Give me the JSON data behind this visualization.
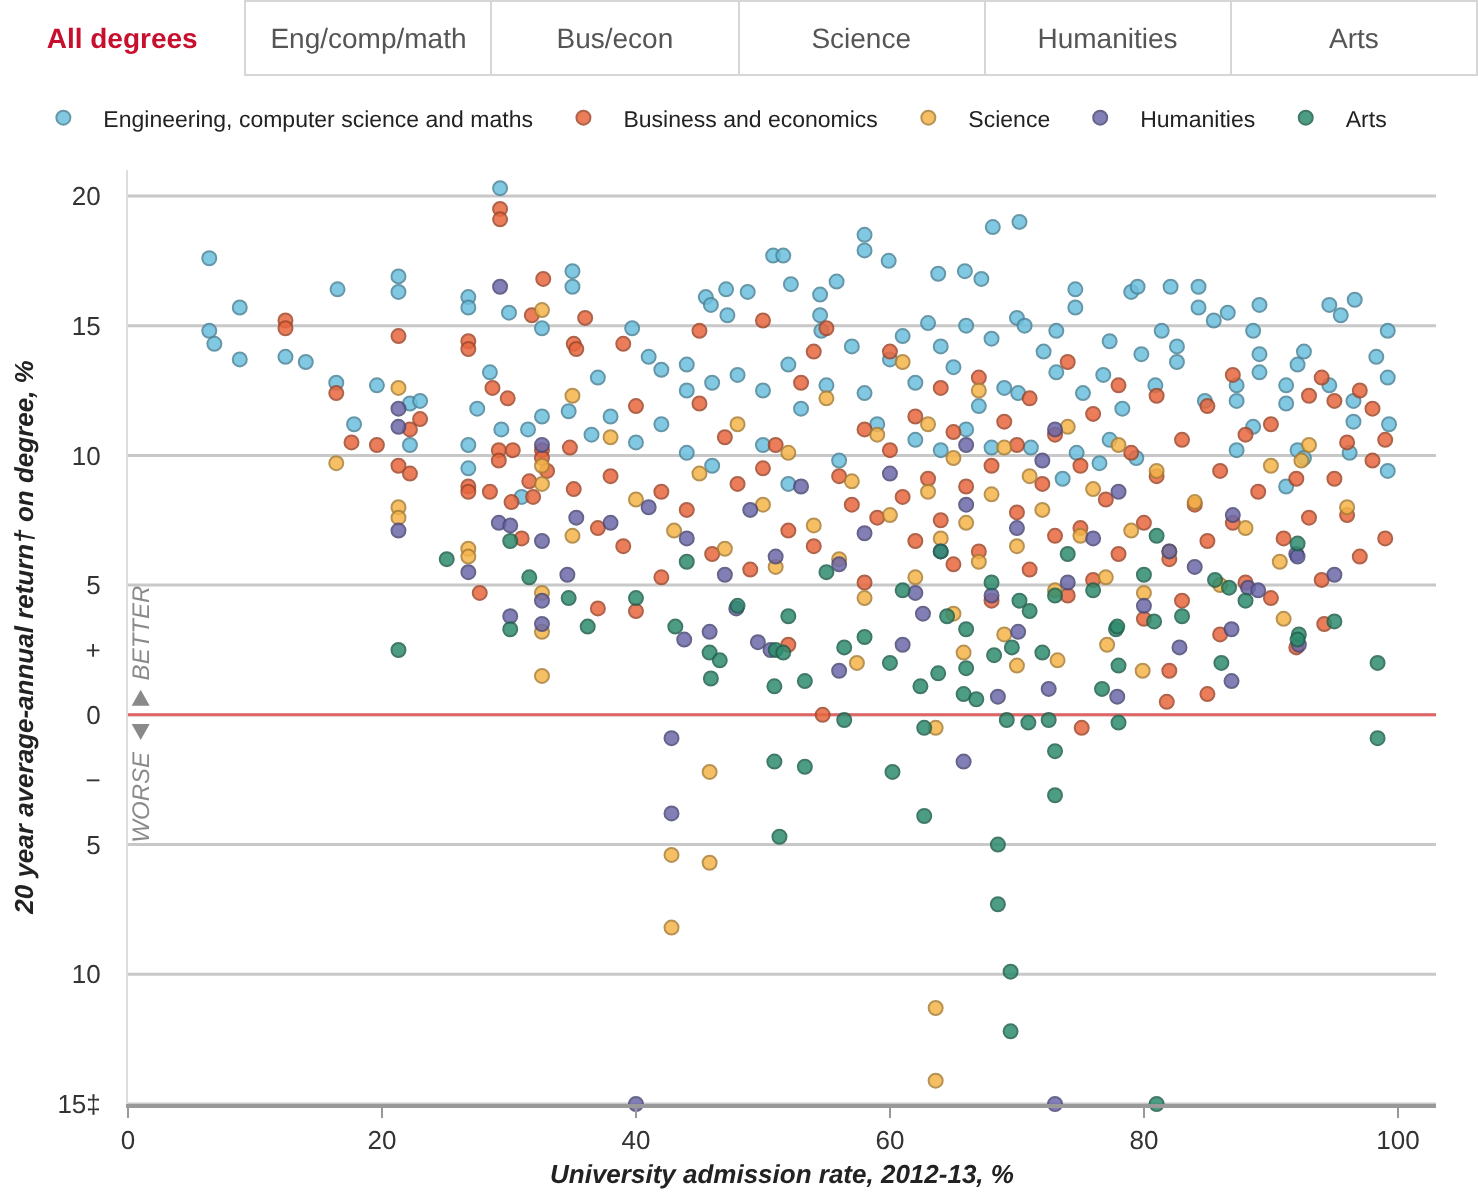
{
  "chart_data": {
    "type": "scatter",
    "xlabel": "University admission rate, 2012-13, %",
    "ylabel": "20 year average-annual return† on degree, %",
    "annotations": [
      "All degrees",
      "Eng/comp/math",
      "Bus/econ",
      "Science",
      "Humanities",
      "Arts",
      "BETTER",
      "WORSE"
    ],
    "xlim": [
      0,
      103
    ],
    "xticks": [
      0,
      20,
      40,
      60,
      80,
      100
    ],
    "ylim": [
      -15,
      21
    ],
    "yticks": [
      20,
      15,
      10,
      5,
      {
        "value": 2.5,
        "label": "+"
      },
      0,
      {
        "value": -2.5,
        "label": "−"
      },
      {
        "value": -5,
        "label": "5"
      },
      {
        "value": -10,
        "label": "10"
      },
      {
        "value": -15,
        "label": "15‡"
      }
    ],
    "grid": "y",
    "legend": "top left",
    "marker": "circle",
    "ref_lines": [
      {
        "axis": "y",
        "value": 0,
        "color": "#e06666"
      }
    ],
    "series": [
      {
        "name": "Engineering, computer science and maths",
        "color": "#6cc0de",
        "x": [
          6.4,
          6.4,
          6.8,
          8.8,
          8.8,
          12.4,
          14,
          16.5,
          16.4,
          19.6,
          17.8,
          21.3,
          21.3,
          22.2,
          23,
          22.2,
          26.8,
          26.8,
          28.5,
          29.3,
          30,
          32.6,
          35,
          35,
          27.5,
          26.8,
          26.8,
          31,
          29.4,
          31.5,
          32.6,
          34.7,
          58,
          58,
          59.9,
          50.8,
          51.6,
          68.1,
          70.2,
          63.8,
          65.9,
          67.2,
          52.2,
          55.8,
          54.5,
          54.5,
          54.6,
          47.1,
          48.8,
          45.5,
          45.9,
          47.2,
          39.7,
          41,
          42,
          44,
          37,
          38,
          36.5,
          40,
          42,
          44,
          46,
          48,
          50,
          52,
          53,
          55,
          57,
          58,
          59,
          60,
          61,
          62,
          63,
          64,
          65,
          66,
          67,
          68,
          69,
          70,
          62,
          64,
          66,
          68,
          56,
          50,
          46,
          44,
          52,
          74.6,
          74.6,
          79,
          79.5,
          82.1,
          84.3,
          84.3,
          89.1,
          94.6,
          95.5,
          96.6,
          99.2,
          99.2,
          99.3,
          99.2,
          98.3,
          96.5,
          96.5,
          96.2,
          94.6,
          92.1,
          92.6,
          92.1,
          92.6,
          91.2,
          91.2,
          91.2,
          89.1,
          89.1,
          88.6,
          88.6,
          87.3,
          87.3,
          87.3,
          85.5,
          86.6,
          84.8,
          82.6,
          82.6,
          81.4,
          80.9,
          79.8,
          78.3,
          77.3,
          77.3,
          76.8,
          76.5,
          75.2,
          74.7,
          73.1,
          73.1,
          72.1,
          70.6,
          70.1,
          71.1,
          73.6,
          79.4
        ],
        "values": [
          17.6,
          14.8,
          14.3,
          15.7,
          13.7,
          13.8,
          13.6,
          16.4,
          12.8,
          12.7,
          11.2,
          16.9,
          16.3,
          12,
          12.1,
          10.4,
          16.1,
          15.7,
          13.2,
          20.3,
          15.5,
          14.9,
          17.1,
          16.5,
          11.8,
          10.4,
          9.5,
          8.4,
          11,
          11,
          11.5,
          11.7,
          18.5,
          17.9,
          17.5,
          17.7,
          17.7,
          18.8,
          19,
          17,
          17.1,
          16.8,
          16.6,
          16.7,
          16.2,
          15.4,
          14.8,
          16.4,
          16.3,
          16.1,
          15.8,
          15.4,
          14.9,
          13.8,
          13.3,
          13.5,
          13,
          11.5,
          10.8,
          10.5,
          11.2,
          12.5,
          12.8,
          13.1,
          12.5,
          13.5,
          11.8,
          12.7,
          14.2,
          12.4,
          11.2,
          13.7,
          14.6,
          12.8,
          15.1,
          14.2,
          13.4,
          15,
          11.9,
          14.5,
          12.6,
          15.3,
          10.6,
          10.2,
          11,
          10.3,
          9.8,
          10.4,
          9.6,
          10.1,
          8.9,
          16.4,
          15.7,
          16.3,
          16.5,
          16.5,
          16.5,
          15.7,
          15.8,
          15.8,
          15.4,
          16,
          14.8,
          13,
          11.2,
          9.4,
          13.8,
          12.1,
          11.3,
          10.1,
          12.7,
          13.5,
          14,
          10.2,
          9.9,
          12.7,
          12,
          8.8,
          13.9,
          13.2,
          14.8,
          11.1,
          12.7,
          12.1,
          10.2,
          15.2,
          15.5,
          12.1,
          14.2,
          13.6,
          14.8,
          12.7,
          13.9,
          11.8,
          14.4,
          10.6,
          13.1,
          9.7,
          12.4,
          10.1,
          14.8,
          13.2,
          14,
          15,
          12.4,
          10.3,
          9.1,
          9.9
        ]
      },
      {
        "name": "Business and economics",
        "color": "#e8673e",
        "x": [
          29.3,
          29.3,
          32.7,
          31.8,
          12.4,
          12.4,
          21.3,
          26.8,
          26.8,
          35.1,
          16.4,
          28.7,
          29.9,
          23,
          22.2,
          17.6,
          19.6,
          21.3,
          22.2,
          29.2,
          29.2,
          30.3,
          26.8,
          26.8,
          31.6,
          30.2,
          31.9,
          28.5,
          31,
          32.6,
          32.6,
          34.8,
          35.1,
          27.7,
          35.3,
          36,
          40,
          38,
          42,
          44,
          45,
          47,
          48,
          46,
          42,
          39,
          37,
          40,
          49,
          50,
          51,
          52,
          53,
          54,
          54,
          56,
          57,
          58,
          58,
          59,
          60,
          60,
          61,
          62,
          62,
          63,
          64,
          64,
          65,
          65,
          66,
          67,
          67,
          68,
          68,
          69,
          70,
          70,
          71,
          71,
          72,
          73,
          73,
          74,
          74,
          75,
          75,
          76,
          76,
          77,
          78,
          78,
          79,
          80,
          80,
          81,
          81,
          82,
          82,
          83,
          83,
          84,
          85,
          85,
          86,
          86,
          87,
          87,
          88,
          88,
          89,
          90,
          90,
          91,
          92,
          92,
          93,
          93,
          94,
          95,
          95,
          96,
          96,
          97,
          98,
          98,
          99,
          99,
          97,
          94,
          54.7,
          52,
          33,
          37,
          39,
          45,
          50,
          55,
          75.1,
          81.8,
          85,
          94.2
        ],
        "values": [
          19.5,
          19.1,
          16.8,
          15.4,
          15.2,
          14.9,
          14.6,
          14.4,
          14.1,
          14.3,
          12.4,
          12.6,
          12.2,
          11.4,
          11,
          10.5,
          10.4,
          9.6,
          9.3,
          10.2,
          9.8,
          10.2,
          8.8,
          8.6,
          9,
          8.2,
          8.4,
          8.6,
          6.8,
          10.2,
          9.9,
          10.3,
          8.7,
          4.7,
          14.1,
          15.3,
          11.9,
          9.2,
          8.6,
          7.9,
          12,
          10.7,
          8.9,
          6.2,
          5.3,
          6.5,
          4.1,
          4,
          5.6,
          9.5,
          10.4,
          7.1,
          12.8,
          14,
          6.5,
          9.2,
          8.1,
          11,
          5.1,
          7.6,
          10.2,
          14,
          8.4,
          6.7,
          11.5,
          9.1,
          7.5,
          12.6,
          5.8,
          10.9,
          8.8,
          13,
          6.3,
          9.6,
          4.4,
          11.3,
          7.8,
          10.4,
          12.2,
          5.6,
          8.9,
          6.9,
          10.8,
          13.6,
          4.6,
          9.6,
          7.2,
          11.6,
          5.2,
          8.3,
          12.7,
          6.2,
          10.1,
          7.4,
          3.7,
          9.2,
          12.3,
          6,
          1.7,
          10.6,
          4.4,
          8.1,
          11.9,
          6.7,
          9.4,
          3.1,
          13.1,
          7.4,
          10.8,
          5.1,
          8.6,
          11.2,
          4.5,
          6.8,
          9.1,
          2.6,
          12.3,
          7.6,
          5.2,
          9.1,
          12.1,
          7.7,
          10.5,
          6.1,
          9.8,
          11.8,
          6.8,
          10.6,
          12.5,
          13,
          0,
          2.7,
          9.4,
          7.2,
          14.3,
          14.8,
          15.2,
          14.9,
          -0.5,
          0.5,
          0.8,
          3.5
        ]
      },
      {
        "name": "Science",
        "color": "#f5b54a",
        "x": [
          32.6,
          21.3,
          16.4,
          21.3,
          21.3,
          26.8,
          26.8,
          32.6,
          32.6,
          35,
          32.6,
          32.6,
          32.6,
          35,
          45.8,
          42.8,
          45.8,
          42.8,
          63.6,
          63.6,
          63.6,
          57.4,
          79.9,
          73.2,
          70,
          65.8,
          77.1,
          38,
          40,
          43,
          45,
          47,
          48,
          50,
          51,
          52,
          54,
          55,
          56,
          57,
          58,
          59,
          60,
          61,
          62,
          63,
          63,
          64,
          65,
          65,
          66,
          67,
          67,
          68,
          69,
          69,
          70,
          71,
          72,
          73,
          74,
          75,
          76,
          77,
          78,
          79,
          80,
          81,
          82,
          84,
          86,
          88,
          90,
          91,
          93,
          96,
          92.4,
          90.7
        ],
        "values": [
          15.6,
          12.6,
          9.7,
          8,
          7.6,
          6.4,
          6.1,
          9.6,
          8.9,
          6.9,
          4.7,
          3.2,
          1.5,
          12.3,
          -2.2,
          -5.4,
          -5.7,
          -8.2,
          -0.5,
          -11.3,
          -14.1,
          2,
          1.7,
          2.1,
          1.9,
          2.4,
          2.7,
          10.7,
          8.3,
          7.1,
          9.3,
          6.4,
          11.2,
          8.1,
          5.7,
          10.1,
          7.3,
          12.2,
          6,
          9,
          4.5,
          10.8,
          7.7,
          13.6,
          5.3,
          8.6,
          11.2,
          6.8,
          9.9,
          3.9,
          7.4,
          12.5,
          5.9,
          8.5,
          10.3,
          3.1,
          6.5,
          9.2,
          7.9,
          4.8,
          11.1,
          6.9,
          8.7,
          5.3,
          10.4,
          7.1,
          4.7,
          9.4,
          6.3,
          8.2,
          5,
          7.2,
          9.6,
          3.7,
          10.4,
          8,
          9.8,
          5.9
        ]
      },
      {
        "name": "Humanities",
        "color": "#6d69aa",
        "x": [
          29.3,
          21.3,
          21.3,
          29.2,
          30.1,
          21.3,
          26.8,
          32.6,
          30.1,
          32.6,
          32.6,
          35.3,
          34.6,
          32.6,
          45.8,
          43.8,
          49.6,
          50.6,
          42.8,
          42.8,
          40,
          47.9,
          73,
          65.8,
          68.5,
          72.5,
          77.9,
          86.9,
          92.2,
          82.8,
          61,
          56,
          86.9,
          70.1,
          62.6,
          88.2,
          38,
          41,
          44,
          47,
          49,
          51,
          53,
          56,
          58,
          60,
          62,
          64,
          66,
          68,
          70,
          72,
          74,
          76,
          78,
          80,
          82,
          84,
          87,
          89,
          92,
          95,
          73,
          66,
          92.1
        ],
        "values": [
          16.5,
          11.8,
          11.1,
          7.4,
          7.3,
          7.1,
          5.5,
          6.7,
          3.8,
          4.4,
          3.5,
          7.6,
          5.4,
          10.4,
          3.2,
          2.9,
          2.8,
          2.5,
          -0.9,
          -3.8,
          -15,
          4.1,
          -15,
          -1.8,
          0.7,
          1,
          0.7,
          1.3,
          2.7,
          2.6,
          2.7,
          1.7,
          3.3,
          3.2,
          3.9,
          4.9,
          7.4,
          8,
          6.8,
          5.4,
          7.9,
          6.1,
          8.8,
          5.8,
          7,
          9.3,
          4.7,
          6.3,
          8.1,
          4.6,
          7.2,
          9.8,
          5.1,
          6.8,
          8.6,
          4.2,
          6.3,
          5.7,
          7.7,
          4.8,
          6.2,
          5.4,
          11,
          10.4,
          6.1
        ]
      },
      {
        "name": "Arts",
        "color": "#2f8c6f",
        "x": [
          21.3,
          25.1,
          30.1,
          30.1,
          31.6,
          34.7,
          36.2,
          43.1,
          45.8,
          46.6,
          45.9,
          50.9,
          50.9,
          51.3,
          53.3,
          53.3,
          56.4,
          60.2,
          62.7,
          62.7,
          62.4,
          63.8,
          65.8,
          66.8,
          68.5,
          68.5,
          69.5,
          69.5,
          69.2,
          70.9,
          72.5,
          73,
          73,
          78,
          76.7,
          78,
          86.1,
          98.4,
          98.4,
          81,
          92.2,
          60,
          51,
          51.6,
          56.4,
          68.2,
          69.6,
          80.8,
          64.5,
          77.8,
          92.1,
          85.6,
          86.7,
          77.9,
          92.1,
          81,
          70.2,
          73,
          40,
          44,
          48,
          52,
          55,
          58,
          61,
          64,
          66,
          68,
          71,
          74,
          76,
          80,
          83,
          88,
          95,
          66,
          72
        ],
        "values": [
          2.5,
          6,
          6.7,
          3.3,
          5.3,
          4.5,
          3.4,
          3.4,
          2.4,
          2.1,
          1.4,
          1.1,
          -1.8,
          -4.7,
          1.3,
          -2,
          -0.2,
          -2.2,
          -3.9,
          -0.5,
          1.1,
          1.6,
          0.8,
          0.6,
          -5,
          -7.3,
          -9.9,
          -12.2,
          -0.2,
          -0.3,
          -0.2,
          -1.4,
          -3.1,
          -0.3,
          1,
          1.9,
          2,
          2,
          -0.9,
          -15,
          3.1,
          2,
          2.5,
          2.4,
          2.6,
          2.3,
          2.6,
          3.6,
          3.8,
          3.3,
          2.9,
          5.2,
          4.9,
          3.4,
          6.6,
          6.9,
          4.4,
          4.6,
          4.5,
          5.9,
          4.2,
          3.8,
          5.5,
          3,
          4.8,
          6.3,
          3.3,
          5.1,
          4,
          6.2,
          4.8,
          5.4,
          3.8,
          4.4,
          3.6,
          1.8,
          2.4
        ]
      }
    ]
  }
}
